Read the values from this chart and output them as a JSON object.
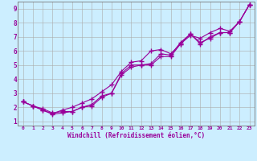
{
  "xlabel": "Windchill (Refroidissement éolien,°C)",
  "bg_color": "#cceeff",
  "line_color": "#990099",
  "grid_color": "#aaaaaa",
  "xlim": [
    -0.5,
    23.5
  ],
  "ylim": [
    0.7,
    9.5
  ],
  "xticks": [
    0,
    1,
    2,
    3,
    4,
    5,
    6,
    7,
    8,
    9,
    10,
    11,
    12,
    13,
    14,
    15,
    16,
    17,
    18,
    19,
    20,
    21,
    22,
    23
  ],
  "yticks": [
    1,
    2,
    3,
    4,
    5,
    6,
    7,
    8,
    9
  ],
  "series": [
    {
      "x": [
        0,
        1,
        2,
        3,
        4,
        5,
        6,
        7,
        8,
        9,
        10,
        11,
        12,
        13,
        14,
        15,
        16,
        17,
        18,
        19,
        20,
        21,
        22,
        23
      ],
      "y": [
        2.4,
        2.1,
        1.9,
        1.6,
        1.7,
        1.7,
        2.0,
        2.2,
        2.8,
        3.0,
        4.4,
        5.0,
        5.0,
        5.0,
        5.6,
        5.6,
        6.5,
        7.2,
        6.6,
        6.9,
        7.3,
        7.3,
        8.1,
        9.3
      ]
    },
    {
      "x": [
        0,
        1,
        2,
        3,
        4,
        5,
        6,
        7,
        8,
        9,
        10,
        11,
        12,
        13,
        14,
        15,
        16,
        17,
        18,
        19,
        20,
        21,
        22,
        23
      ],
      "y": [
        2.4,
        2.1,
        1.8,
        1.5,
        1.6,
        1.7,
        2.0,
        2.1,
        2.7,
        3.0,
        4.3,
        4.85,
        5.0,
        5.1,
        5.8,
        5.7,
        6.6,
        7.2,
        6.5,
        7.0,
        7.3,
        7.3,
        8.1,
        9.3
      ]
    },
    {
      "x": [
        0,
        1,
        2,
        3,
        4,
        5,
        6,
        7,
        8,
        9,
        10,
        11,
        12,
        13,
        14,
        15,
        16,
        17,
        18,
        19,
        20,
        21,
        22,
        23
      ],
      "y": [
        2.4,
        2.1,
        1.8,
        1.55,
        1.8,
        2.0,
        2.3,
        2.6,
        3.1,
        3.6,
        4.55,
        5.2,
        5.3,
        6.0,
        6.1,
        5.8,
        6.5,
        7.1,
        6.9,
        7.3,
        7.6,
        7.4,
        8.1,
        9.3
      ]
    }
  ]
}
